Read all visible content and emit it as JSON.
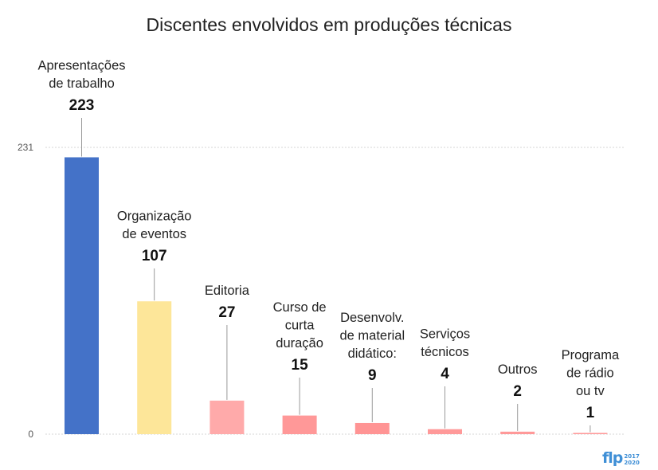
{
  "chart_data": {
    "type": "bar",
    "title": "Discentes envolvidos em produções técnicas",
    "categories": [
      [
        "Apresentações",
        "de trabalho"
      ],
      [
        "Organização",
        "de eventos"
      ],
      [
        "Editoria"
      ],
      [
        "Curso de",
        "curta",
        "duração"
      ],
      [
        "Desenvolv.",
        "de material",
        "didático:"
      ],
      [
        "Serviços",
        "técnicos"
      ],
      [
        "Outros"
      ],
      [
        "Programa",
        "de rádio",
        "ou tv"
      ]
    ],
    "values": [
      223,
      107,
      27,
      15,
      9,
      4,
      2,
      1
    ],
    "value_labels": [
      "223",
      "107",
      "27",
      "15",
      "9",
      "4",
      "2",
      "1"
    ],
    "colors": [
      "#4472c8",
      "#fde699",
      "#ffaaaa",
      "#ff9898",
      "#ff9494",
      "#ff9999",
      "#ff9999",
      "#ff9999"
    ],
    "y_ticks": [
      "0",
      "231"
    ],
    "ylim": [
      0,
      231
    ],
    "grid": true,
    "legend": "none"
  },
  "logo": {
    "main": "flp",
    "years_top": "2017",
    "years_bottom": "2020"
  }
}
